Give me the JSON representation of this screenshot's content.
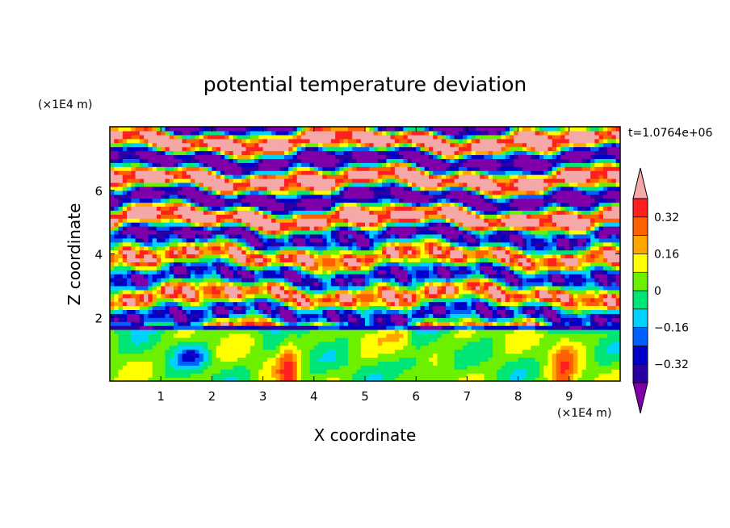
{
  "chart_data": {
    "type": "heatmap",
    "title": "potential temperature deviation",
    "xlabel": "X coordinate",
    "ylabel": "Z coordinate",
    "x_unit": "(×1E4 m)",
    "y_unit": "(×1E4 m)",
    "time_label": "t=1.0764e+06",
    "xlim": [
      0,
      10
    ],
    "ylim": [
      0,
      8
    ],
    "x_ticks": [
      "1",
      "2",
      "3",
      "4",
      "5",
      "6",
      "7",
      "8",
      "9"
    ],
    "y_ticks": [
      "2",
      "4",
      "6"
    ],
    "colorbar": {
      "levels": [
        -0.4,
        -0.32,
        -0.24,
        -0.16,
        -0.08,
        0,
        0.08,
        0.16,
        0.24,
        0.32,
        0.4
      ],
      "tick_labels": [
        "0.32",
        "0.16",
        "0",
        "−0.16",
        "−0.32"
      ],
      "colors": [
        "#7f00a8",
        "#2a00a0",
        "#0000c8",
        "#0060ff",
        "#00d2ff",
        "#00e676",
        "#6cf000",
        "#ffff00",
        "#ffa500",
        "#ff6000",
        "#ff2020",
        "#f4a8a8"
      ]
    }
  }
}
